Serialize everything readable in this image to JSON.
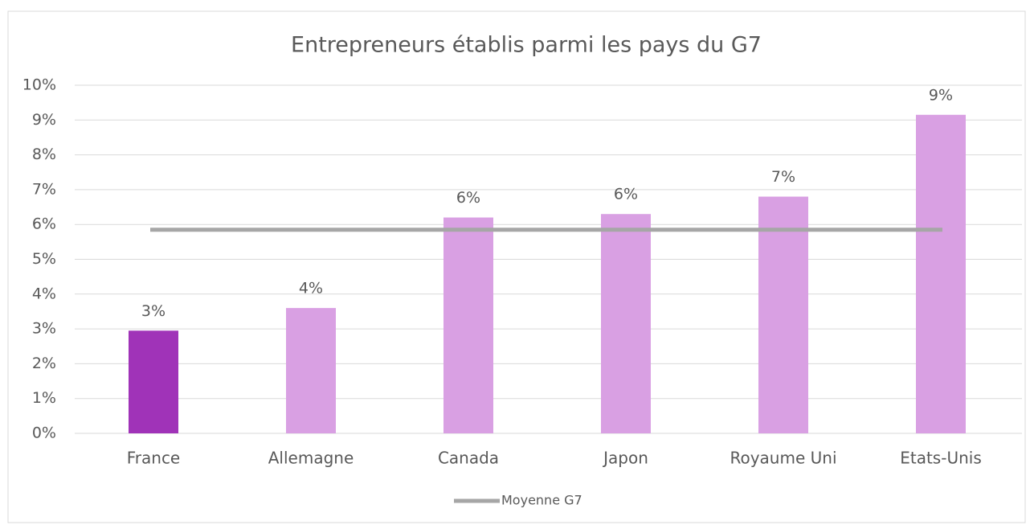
{
  "chart_data": {
    "type": "bar",
    "title": "Entrepreneurs établis parmi les pays du G7",
    "categories": [
      "France",
      "Allemagne",
      "Canada",
      "Japon",
      "Royaume Uni",
      "Etats-Unis"
    ],
    "values": [
      2.95,
      3.6,
      6.2,
      6.3,
      6.8,
      9.15
    ],
    "value_labels": [
      "3%",
      "4%",
      "6%",
      "6%",
      "7%",
      "9%"
    ],
    "colors": [
      "#a033b8",
      "#d9a0e3",
      "#d9a0e3",
      "#d9a0e3",
      "#d9a0e3",
      "#d9a0e3"
    ],
    "average": {
      "name": "Moyenne G7",
      "value": 5.85,
      "color": "#a6a6a6"
    },
    "ylim": [
      0,
      10
    ],
    "yticks": [
      {
        "value": 0,
        "label": "0%"
      },
      {
        "value": 1,
        "label": "1%"
      },
      {
        "value": 2,
        "label": "2%"
      },
      {
        "value": 3,
        "label": "3%"
      },
      {
        "value": 4,
        "label": "4%"
      },
      {
        "value": 5,
        "label": "5%"
      },
      {
        "value": 6,
        "label": "6%"
      },
      {
        "value": 7,
        "label": "7%"
      },
      {
        "value": 8,
        "label": "8%"
      },
      {
        "value": 9,
        "label": "9%"
      },
      {
        "value": 10,
        "label": "10%"
      }
    ],
    "grid": true,
    "legend": "bottom"
  }
}
